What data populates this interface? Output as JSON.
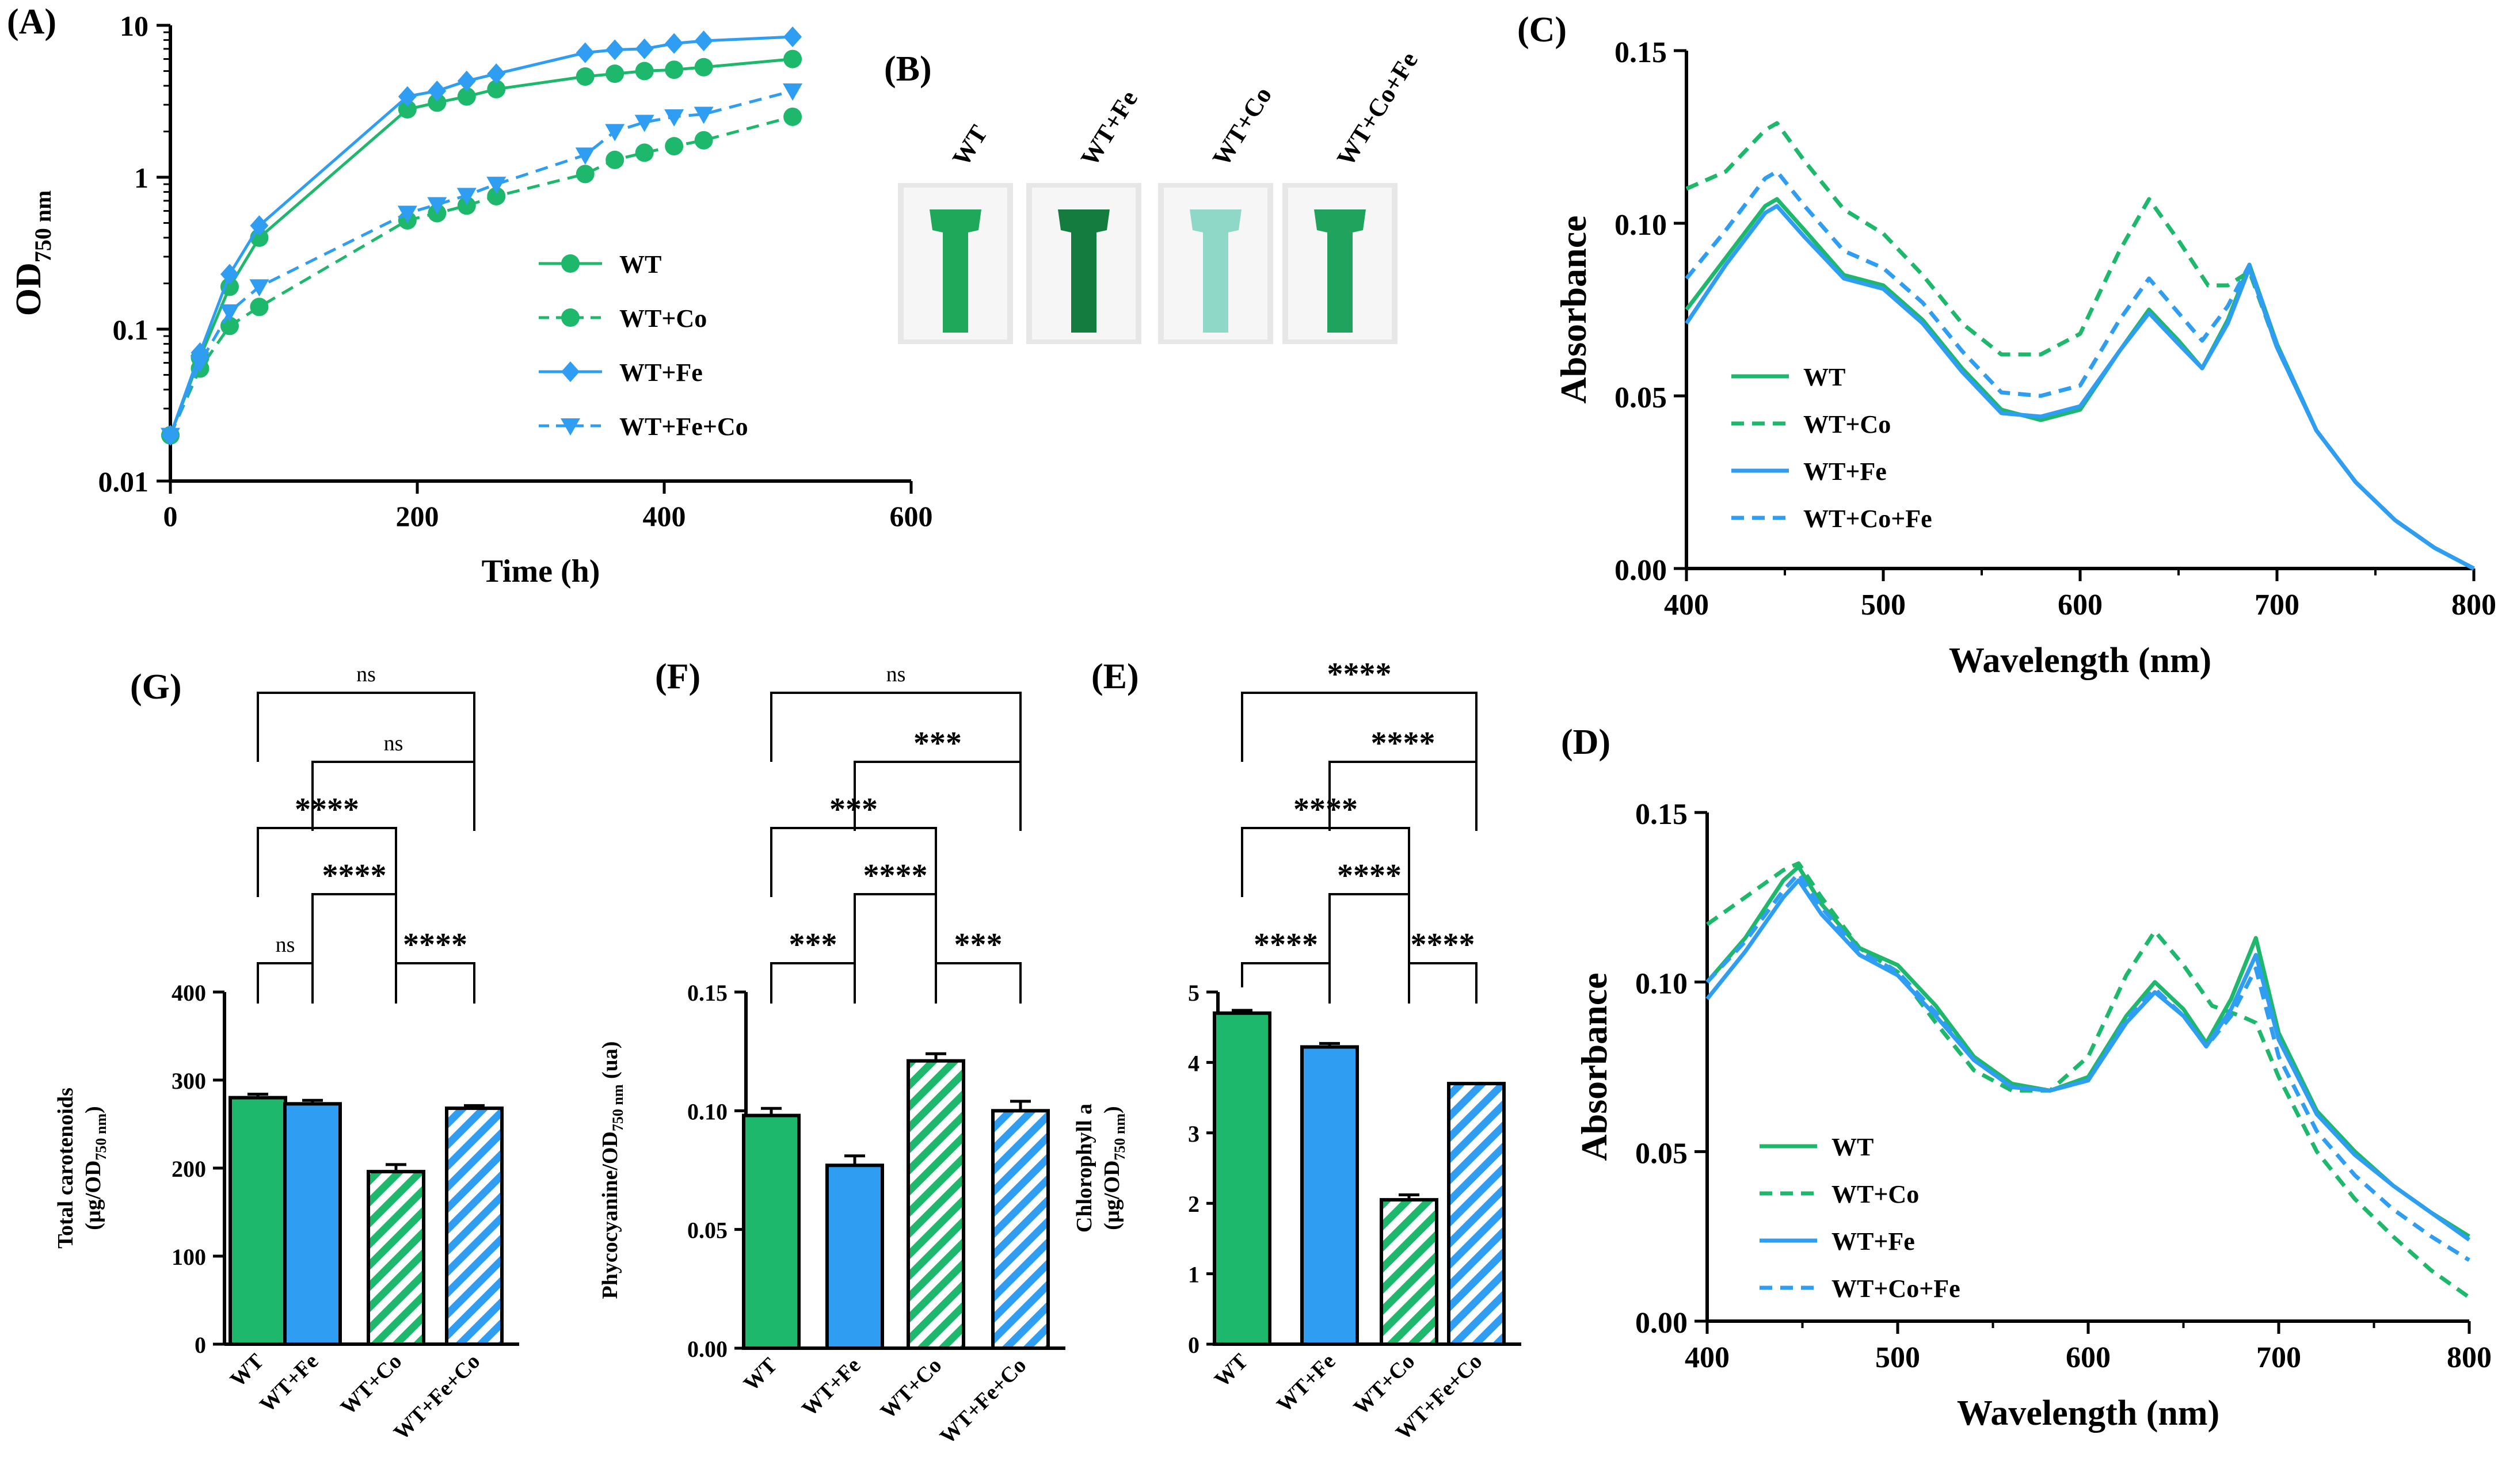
{
  "colors": {
    "green": "#1db86b",
    "blue": "#2e9df2",
    "cuvette_wt": "#1fa85a",
    "cuvette_wtfe": "#157c3f",
    "cuvette_wtco": "#8fd8c8",
    "cuvette_wtcofe": "#20a35c",
    "axis": "#000000"
  },
  "chart_data": [
    {
      "panel": "(A)",
      "type": "line",
      "xlabel": "Time (h)",
      "ylabel_main": "OD",
      "ylabel_sub": "750 nm",
      "xlim": [
        0,
        600
      ],
      "ylim": [
        0.01,
        10
      ],
      "yscale": "log",
      "xticks": [
        "0",
        "200",
        "400",
        "600"
      ],
      "yticks": [
        "0.01",
        "0.1",
        "1",
        "10"
      ],
      "series": [
        {
          "name": "WT",
          "color": "green",
          "dash": false,
          "marker": "circle",
          "x": [
            0,
            24,
            48,
            72,
            192,
            216,
            240,
            264,
            336,
            360,
            384,
            408,
            432,
            504
          ],
          "y": [
            0.02,
            0.065,
            0.19,
            0.4,
            2.8,
            3.1,
            3.4,
            3.8,
            4.6,
            4.8,
            5.0,
            5.1,
            5.3,
            6.0
          ]
        },
        {
          "name": "WT+Co",
          "color": "green",
          "dash": true,
          "marker": "circle",
          "x": [
            0,
            24,
            48,
            72,
            192,
            216,
            240,
            264,
            336,
            360,
            384,
            408,
            432,
            504
          ],
          "y": [
            0.02,
            0.055,
            0.105,
            0.14,
            0.52,
            0.58,
            0.65,
            0.75,
            1.05,
            1.3,
            1.45,
            1.6,
            1.75,
            2.5
          ]
        },
        {
          "name": "WT+Fe",
          "color": "blue",
          "dash": false,
          "marker": "diamond",
          "x": [
            0,
            24,
            48,
            72,
            192,
            216,
            240,
            264,
            336,
            360,
            384,
            408,
            432,
            504
          ],
          "y": [
            0.02,
            0.07,
            0.23,
            0.48,
            3.4,
            3.7,
            4.3,
            4.8,
            6.6,
            6.9,
            7.0,
            7.6,
            7.9,
            8.4
          ]
        },
        {
          "name": "WT+Fe+Co",
          "color": "blue",
          "dash": true,
          "marker": "triangle-down",
          "x": [
            0,
            24,
            48,
            72,
            192,
            216,
            240,
            264,
            336,
            360,
            384,
            408,
            432,
            504
          ],
          "y": [
            0.02,
            0.06,
            0.13,
            0.19,
            0.58,
            0.66,
            0.76,
            0.9,
            1.4,
            2.0,
            2.3,
            2.5,
            2.6,
            3.7
          ]
        }
      ]
    },
    {
      "panel": "(B)",
      "type": "photo",
      "labels": [
        "WT",
        "WT+Fe",
        "WT+Co",
        "WT+Co+Fe"
      ]
    },
    {
      "panel": "(C)",
      "type": "line",
      "xlabel": "Wavelength (nm)",
      "ylabel": "Absorbance",
      "xlim": [
        400,
        800
      ],
      "ylim": [
        0,
        0.15
      ],
      "xticks": [
        "400",
        "500",
        "600",
        "700",
        "800"
      ],
      "yticks": [
        "0.00",
        "0.05",
        "0.10",
        "0.15"
      ],
      "series": [
        {
          "name": "WT",
          "color": "green",
          "dash": false,
          "x": [
            400,
            420,
            440,
            446,
            460,
            480,
            500,
            520,
            540,
            560,
            580,
            600,
            620,
            635,
            650,
            662,
            675,
            686,
            700,
            720,
            740,
            760,
            780,
            800
          ],
          "y": [
            0.075,
            0.09,
            0.105,
            0.107,
            0.098,
            0.085,
            0.082,
            0.072,
            0.058,
            0.046,
            0.043,
            0.046,
            0.063,
            0.075,
            0.066,
            0.058,
            0.072,
            0.088,
            0.065,
            0.04,
            0.025,
            0.014,
            0.006,
            0.0
          ]
        },
        {
          "name": "WT+Co",
          "color": "green",
          "dash": true,
          "x": [
            400,
            420,
            440,
            446,
            460,
            480,
            500,
            520,
            540,
            560,
            580,
            600,
            620,
            635,
            650,
            665,
            675,
            686,
            700,
            720,
            740,
            760,
            780,
            800
          ],
          "y": [
            0.11,
            0.115,
            0.127,
            0.129,
            0.118,
            0.104,
            0.097,
            0.085,
            0.071,
            0.062,
            0.062,
            0.068,
            0.092,
            0.107,
            0.095,
            0.082,
            0.082,
            0.086,
            0.064,
            0.04,
            0.025,
            0.014,
            0.006,
            0.0
          ]
        },
        {
          "name": "WT+Fe",
          "color": "blue",
          "dash": false,
          "x": [
            400,
            420,
            440,
            446,
            460,
            480,
            500,
            520,
            540,
            560,
            580,
            600,
            620,
            635,
            650,
            662,
            675,
            686,
            700,
            720,
            740,
            760,
            780,
            800
          ],
          "y": [
            0.071,
            0.088,
            0.103,
            0.105,
            0.096,
            0.084,
            0.081,
            0.071,
            0.057,
            0.045,
            0.044,
            0.047,
            0.063,
            0.074,
            0.065,
            0.058,
            0.071,
            0.087,
            0.064,
            0.04,
            0.025,
            0.014,
            0.006,
            0.0
          ]
        },
        {
          "name": "WT+Co+Fe",
          "color": "blue",
          "dash": true,
          "x": [
            400,
            420,
            440,
            446,
            460,
            480,
            500,
            520,
            540,
            560,
            580,
            600,
            620,
            635,
            650,
            662,
            675,
            686,
            700,
            720,
            740,
            760,
            780,
            800
          ],
          "y": [
            0.084,
            0.098,
            0.113,
            0.115,
            0.105,
            0.092,
            0.087,
            0.077,
            0.063,
            0.051,
            0.05,
            0.053,
            0.072,
            0.084,
            0.074,
            0.066,
            0.076,
            0.088,
            0.065,
            0.04,
            0.025,
            0.014,
            0.006,
            0.0
          ]
        }
      ]
    },
    {
      "panel": "(D)",
      "type": "line",
      "xlabel": "Wavelength (nm)",
      "ylabel": "Absorbance",
      "xlim": [
        400,
        800
      ],
      "ylim": [
        0,
        0.15
      ],
      "xticks": [
        "400",
        "500",
        "600",
        "700",
        "800"
      ],
      "yticks": [
        "0.00",
        "0.05",
        "0.10",
        "0.15"
      ],
      "series": [
        {
          "name": "WT",
          "color": "green",
          "dash": false,
          "x": [
            400,
            420,
            440,
            448,
            460,
            480,
            500,
            520,
            540,
            560,
            580,
            600,
            620,
            635,
            650,
            662,
            675,
            688,
            700,
            720,
            740,
            760,
            780,
            800
          ],
          "y": [
            0.1,
            0.113,
            0.13,
            0.134,
            0.123,
            0.11,
            0.105,
            0.093,
            0.078,
            0.07,
            0.068,
            0.072,
            0.09,
            0.1,
            0.092,
            0.082,
            0.095,
            0.113,
            0.085,
            0.062,
            0.05,
            0.04,
            0.032,
            0.025
          ]
        },
        {
          "name": "WT+Co",
          "color": "green",
          "dash": true,
          "x": [
            400,
            420,
            440,
            448,
            460,
            480,
            500,
            520,
            540,
            560,
            580,
            600,
            620,
            635,
            650,
            665,
            680,
            688,
            700,
            720,
            740,
            760,
            780,
            800
          ],
          "y": [
            0.117,
            0.125,
            0.133,
            0.135,
            0.125,
            0.11,
            0.103,
            0.088,
            0.074,
            0.068,
            0.068,
            0.078,
            0.102,
            0.115,
            0.105,
            0.093,
            0.09,
            0.088,
            0.072,
            0.05,
            0.036,
            0.025,
            0.015,
            0.007
          ]
        },
        {
          "name": "WT+Fe",
          "color": "blue",
          "dash": false,
          "x": [
            400,
            420,
            440,
            448,
            460,
            480,
            500,
            520,
            540,
            560,
            580,
            600,
            620,
            635,
            650,
            662,
            675,
            688,
            700,
            720,
            740,
            760,
            780,
            800
          ],
          "y": [
            0.095,
            0.109,
            0.125,
            0.13,
            0.12,
            0.108,
            0.102,
            0.09,
            0.077,
            0.069,
            0.068,
            0.071,
            0.088,
            0.097,
            0.09,
            0.081,
            0.092,
            0.108,
            0.083,
            0.061,
            0.049,
            0.04,
            0.032,
            0.024
          ]
        },
        {
          "name": "WT+Co+Fe",
          "color": "blue",
          "dash": true,
          "x": [
            400,
            420,
            440,
            448,
            460,
            480,
            500,
            520,
            540,
            560,
            580,
            600,
            620,
            635,
            650,
            662,
            675,
            688,
            700,
            720,
            740,
            760,
            780,
            800
          ],
          "y": [
            0.1,
            0.112,
            0.127,
            0.132,
            0.122,
            0.109,
            0.103,
            0.091,
            0.077,
            0.069,
            0.068,
            0.071,
            0.089,
            0.098,
            0.09,
            0.081,
            0.09,
            0.104,
            0.078,
            0.056,
            0.043,
            0.033,
            0.025,
            0.018
          ]
        }
      ]
    },
    {
      "panel": "(G)",
      "type": "bar",
      "ylabel_line1": "Total carotenoids",
      "ylabel_line2": "(µg/OD",
      "ylabel_sub": "750 nm",
      "ylabel_end": ")",
      "ylim": [
        0,
        400
      ],
      "yticks": [
        "0",
        "100",
        "200",
        "300",
        "400"
      ],
      "categories": [
        "WT",
        "WT+Fe",
        "WT+Co",
        "WT+Fe+Co"
      ],
      "values": [
        280,
        273,
        196,
        268
      ],
      "errors": [
        4,
        4,
        8,
        3
      ],
      "bar_colors": [
        "green",
        "blue",
        "green",
        "blue"
      ],
      "hatched": [
        false,
        false,
        true,
        true
      ],
      "significance": [
        {
          "from": 0,
          "to": 1,
          "label": "ns",
          "level": 1
        },
        {
          "from": 2,
          "to": 3,
          "label": "****",
          "level": 1
        },
        {
          "from": 1,
          "to": 2,
          "label": "****",
          "level": 2
        },
        {
          "from": 0,
          "to": 2,
          "label": "****",
          "level": 3
        },
        {
          "from": 1,
          "to": 3,
          "label": "ns",
          "level": 4
        },
        {
          "from": 0,
          "to": 3,
          "label": "ns",
          "level": 5
        }
      ]
    },
    {
      "panel": "(F)",
      "type": "bar",
      "ylabel_line1": "Phycocyanine/OD",
      "ylabel_sub": "750 nm",
      "ylabel_end": " (ua)",
      "ylim": [
        0,
        0.15
      ],
      "yticks": [
        "0.00",
        "0.05",
        "0.10",
        "0.15"
      ],
      "categories": [
        "WT",
        "WT+Fe",
        "WT+Co",
        "WT+Fe+Co"
      ],
      "values": [
        0.098,
        0.077,
        0.121,
        0.1
      ],
      "errors": [
        0.003,
        0.004,
        0.003,
        0.004
      ],
      "bar_colors": [
        "green",
        "blue",
        "green",
        "blue"
      ],
      "hatched": [
        false,
        false,
        true,
        true
      ],
      "significance": [
        {
          "from": 0,
          "to": 1,
          "label": "***",
          "level": 1
        },
        {
          "from": 2,
          "to": 3,
          "label": "***",
          "level": 1
        },
        {
          "from": 1,
          "to": 2,
          "label": "****",
          "level": 2
        },
        {
          "from": 0,
          "to": 2,
          "label": "***",
          "level": 3
        },
        {
          "from": 1,
          "to": 3,
          "label": "***",
          "level": 4
        },
        {
          "from": 0,
          "to": 3,
          "label": "ns",
          "level": 5
        }
      ]
    },
    {
      "panel": "(E)",
      "type": "bar",
      "ylabel_line1": "Chlorophyll a",
      "ylabel_line2": "(µg/OD",
      "ylabel_sub": "750 nm",
      "ylabel_end": ")",
      "ylim": [
        0,
        5
      ],
      "yticks": [
        "0",
        "1",
        "2",
        "3",
        "4",
        "5"
      ],
      "categories": [
        "WT",
        "WT+Fe",
        "WT+Co",
        "WT+Fe+Co"
      ],
      "values": [
        4.7,
        4.22,
        2.05,
        3.7
      ],
      "errors": [
        0.04,
        0.05,
        0.07,
        0.0
      ],
      "bar_colors": [
        "green",
        "blue",
        "green",
        "blue"
      ],
      "hatched": [
        false,
        false,
        true,
        true
      ],
      "significance": [
        {
          "from": 0,
          "to": 1,
          "label": "****",
          "level": 1
        },
        {
          "from": 2,
          "to": 3,
          "label": "****",
          "level": 1
        },
        {
          "from": 1,
          "to": 2,
          "label": "****",
          "level": 2
        },
        {
          "from": 0,
          "to": 2,
          "label": "****",
          "level": 3
        },
        {
          "from": 1,
          "to": 3,
          "label": "****",
          "level": 4
        },
        {
          "from": 0,
          "to": 3,
          "label": "****",
          "level": 5
        }
      ]
    }
  ]
}
